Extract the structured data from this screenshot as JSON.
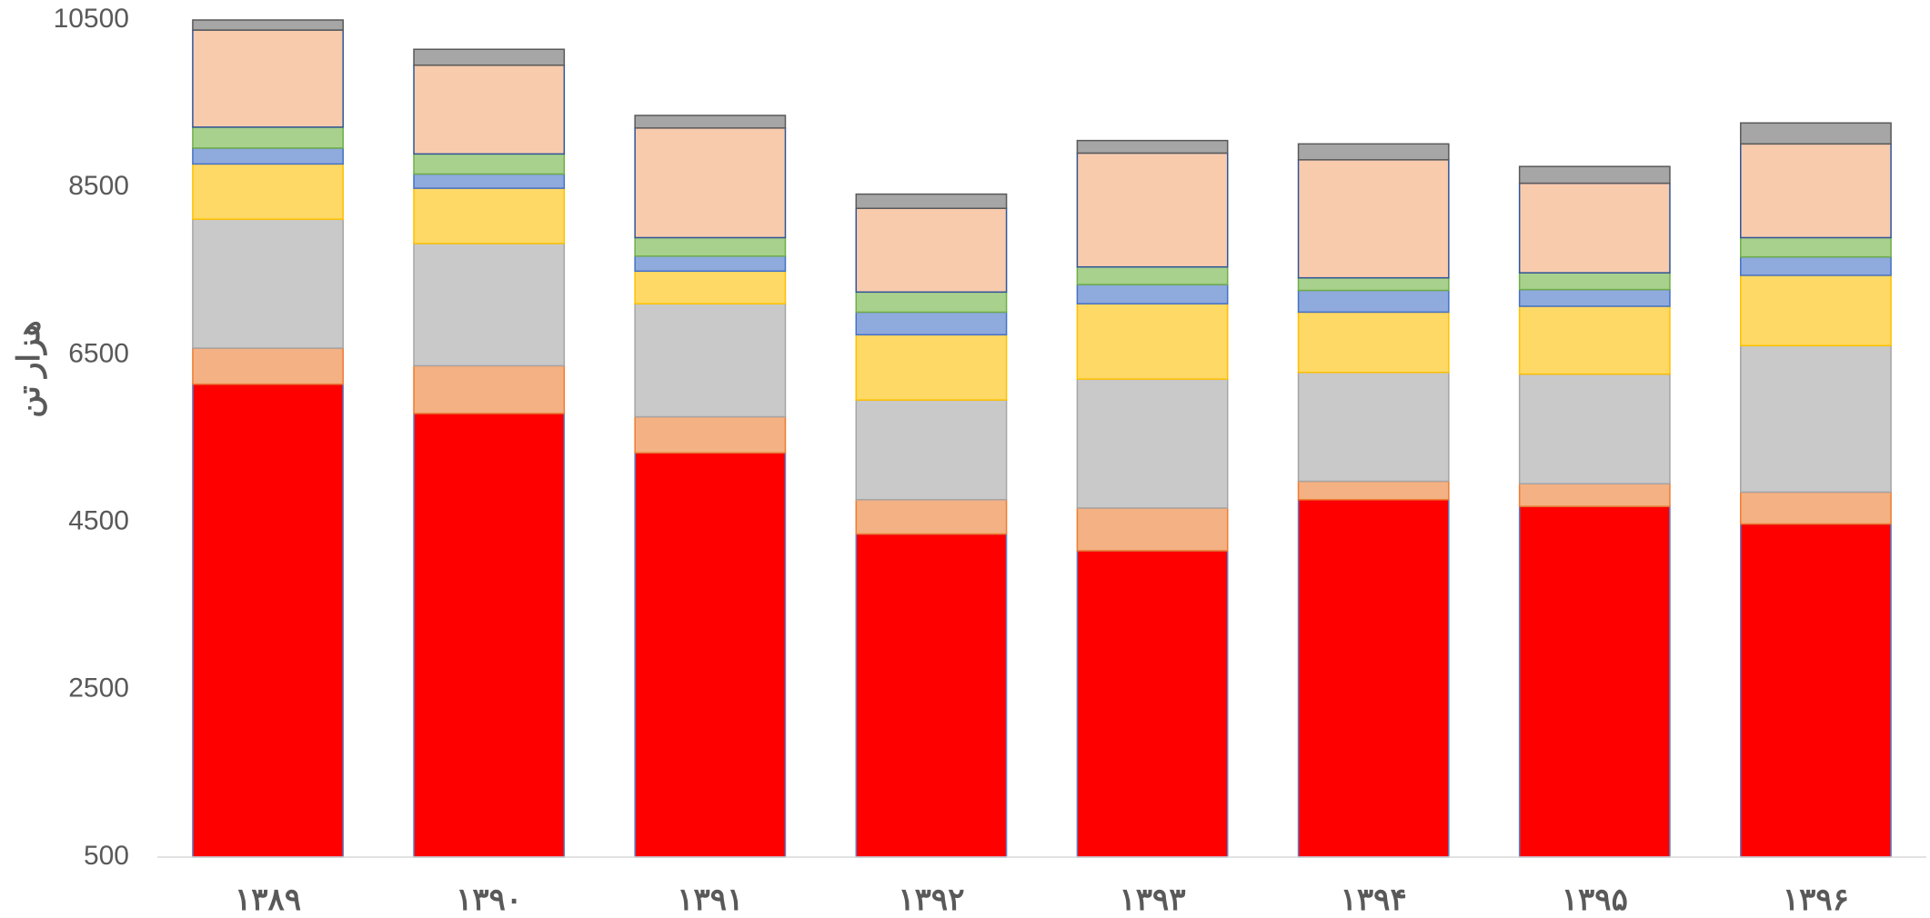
{
  "chart_data": {
    "type": "stacked_bar",
    "ylabel": "هزار تن",
    "categories": [
      "۱۳۸۹",
      "۱۳۹۰",
      "۱۳۹۱",
      "۱۳۹۲",
      "۱۳۹۳",
      "۱۳۹۴",
      "۱۳۹۵",
      "۱۳۹۶"
    ],
    "series": [
      {
        "color": "#ff0000",
        "edgecolor": "#5b7fc7",
        "values": [
          6150,
          5800,
          5330,
          4360,
          4160,
          4770,
          4690,
          4480
        ]
      },
      {
        "color": "#f4b183",
        "edgecolor": "#ed7d31",
        "values": [
          430,
          570,
          430,
          410,
          510,
          220,
          270,
          380
        ]
      },
      {
        "color": "#c9c9c9",
        "edgecolor": "#a5a5a5",
        "values": [
          1540,
          1460,
          1350,
          1190,
          1540,
          1300,
          1310,
          1750
        ]
      },
      {
        "color": "#ffd966",
        "edgecolor": "#ffc000",
        "values": [
          660,
          660,
          390,
          780,
          900,
          720,
          810,
          840
        ]
      },
      {
        "color": "#8faadc",
        "edgecolor": "#4472c4",
        "values": [
          190,
          170,
          180,
          270,
          230,
          260,
          200,
          220
        ]
      },
      {
        "color": "#a9d18e",
        "edgecolor": "#70ad47",
        "values": [
          250,
          240,
          220,
          240,
          210,
          150,
          200,
          230
        ]
      },
      {
        "color": "#f8cbad",
        "edgecolor": "#2f5597",
        "values": [
          1160,
          1060,
          1310,
          1000,
          1360,
          1410,
          1070,
          1120
        ]
      },
      {
        "color": "#a6a6a6",
        "edgecolor": "#595959",
        "values": [
          210,
          190,
          150,
          170,
          150,
          190,
          200,
          250
        ]
      }
    ],
    "ylim": [
      500,
      10500
    ],
    "yticks": [
      500,
      2500,
      4500,
      6500,
      8500,
      10500
    ],
    "grid": false
  }
}
